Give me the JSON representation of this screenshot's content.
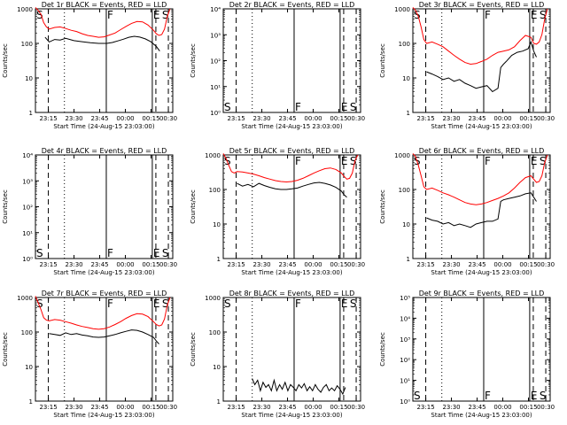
{
  "chart_data": [
    {
      "type": "line",
      "title": "Det 1r BLACK = Events, RED = LLD",
      "ylabel": "Counts/sec",
      "xlabel": "Start Time (24-Aug-15 23:03:00)",
      "yscale": "log",
      "ylim": [
        1,
        1000
      ],
      "yticks": [
        "1",
        "10",
        "100",
        "1000"
      ],
      "xticks": [
        "23:15",
        "23:30",
        "23:45",
        "00:00",
        "00:15",
        "00:30"
      ],
      "markers": [
        "S",
        "F",
        "E",
        "S"
      ],
      "series": [
        {
          "name": "BLACK",
          "color": "#000000",
          "x": [
            0.07,
            0.1,
            0.14,
            0.18,
            0.22,
            0.28,
            0.34,
            0.4,
            0.46,
            0.52,
            0.56,
            0.6,
            0.64,
            0.68,
            0.72,
            0.76,
            0.8,
            0.84,
            0.88,
            0.905
          ],
          "y": [
            150,
            110,
            130,
            125,
            140,
            120,
            112,
            104,
            100,
            100,
            106,
            118,
            132,
            150,
            160,
            152,
            135,
            112,
            82,
            60
          ]
        },
        {
          "name": "RED",
          "color": "#ff0000",
          "x": [
            0.0,
            0.02,
            0.04,
            0.06,
            0.08,
            0.1,
            0.14,
            0.18,
            0.22,
            0.26,
            0.3,
            0.34,
            0.38,
            0.42,
            0.46,
            0.5,
            0.54,
            0.58,
            0.62,
            0.66,
            0.7,
            0.74,
            0.78,
            0.82,
            0.86,
            0.88,
            0.9,
            0.92,
            0.94,
            0.96,
            0.98
          ],
          "y": [
            1100,
            900,
            700,
            400,
            300,
            260,
            290,
            300,
            270,
            240,
            220,
            190,
            170,
            160,
            150,
            155,
            175,
            200,
            250,
            310,
            380,
            430,
            420,
            340,
            240,
            190,
            170,
            180,
            260,
            600,
            1000
          ]
        }
      ]
    },
    {
      "type": "line",
      "title": "Det 2r BLACK = Events, RED = LLD",
      "ylabel": "Counts/sec",
      "xlabel": "Start Time (24-Aug-15 23:03:00)",
      "yscale": "log",
      "ylim": [
        1,
        10000
      ],
      "yticks": [
        "10⁰",
        "10¹",
        "10²",
        "10³",
        "10⁴"
      ],
      "xticks": [
        "23:15",
        "23:30",
        "23:45",
        "00:00",
        "00:15",
        "00:30"
      ],
      "markers": [
        "S",
        "F",
        "E",
        "S"
      ],
      "series": []
    },
    {
      "type": "line",
      "title": "Det 3r BLACK = Events, RED = LLD",
      "ylabel": "Counts/sec",
      "xlabel": "Start Time (24-Aug-15 23:03:00)",
      "yscale": "log",
      "ylim": [
        1,
        1000
      ],
      "yticks": [
        "1",
        "10",
        "100",
        "1000"
      ],
      "xticks": [
        "23:15",
        "23:30",
        "23:45",
        "00:00",
        "00:15",
        "00:30"
      ],
      "markers": [
        "S",
        "F",
        "E",
        "S"
      ],
      "series": [
        {
          "name": "BLACK",
          "color": "#000000",
          "x": [
            0.1,
            0.14,
            0.18,
            0.22,
            0.26,
            0.3,
            0.34,
            0.38,
            0.42,
            0.46,
            0.5,
            0.54,
            0.58,
            0.62,
            0.64,
            0.66,
            0.68,
            0.72,
            0.76,
            0.8,
            0.84,
            0.86,
            0.88,
            0.9
          ],
          "y": [
            15,
            13,
            11,
            9,
            10,
            8,
            9,
            7,
            6,
            5,
            5.5,
            6,
            4,
            5,
            20,
            25,
            30,
            45,
            55,
            60,
            70,
            110,
            60,
            40
          ]
        },
        {
          "name": "RED",
          "color": "#ff0000",
          "x": [
            0.0,
            0.02,
            0.04,
            0.06,
            0.08,
            0.1,
            0.14,
            0.18,
            0.22,
            0.26,
            0.3,
            0.34,
            0.38,
            0.42,
            0.46,
            0.5,
            0.54,
            0.58,
            0.62,
            0.66,
            0.7,
            0.74,
            0.78,
            0.82,
            0.86,
            0.88,
            0.9,
            0.92,
            0.94,
            0.96,
            0.98
          ],
          "y": [
            1100,
            900,
            600,
            300,
            130,
            100,
            110,
            95,
            80,
            60,
            45,
            35,
            28,
            25,
            26,
            30,
            35,
            45,
            55,
            60,
            65,
            80,
            120,
            170,
            150,
            100,
            95,
            110,
            180,
            500,
            1000
          ]
        }
      ]
    },
    {
      "type": "line",
      "title": "Det 4r BLACK = Events, RED = LLD",
      "ylabel": "Counts/sec",
      "xlabel": "Start Time (24-Aug-15 23:03:00)",
      "yscale": "log",
      "ylim": [
        1,
        10000
      ],
      "yticks": [
        "10⁰",
        "10¹",
        "10²",
        "10³",
        "10⁴"
      ],
      "xticks": [
        "23:15",
        "23:30",
        "23:45",
        "00:00",
        "00:15",
        "00:30"
      ],
      "markers": [
        "S",
        "F",
        "E",
        "S"
      ],
      "series": []
    },
    {
      "type": "line",
      "title": "Det 5r BLACK = Events, RED = LLD",
      "ylabel": "Counts/sec",
      "xlabel": "Start Time (24-Aug-15 23:03:00)",
      "yscale": "log",
      "ylim": [
        1,
        1000
      ],
      "yticks": [
        "1",
        "10",
        "100",
        "1000"
      ],
      "xticks": [
        "23:15",
        "23:30",
        "23:45",
        "00:00",
        "00:15",
        "00:30"
      ],
      "markers": [
        "S",
        "F",
        "E",
        "S"
      ],
      "series": [
        {
          "name": "BLACK",
          "color": "#000000",
          "x": [
            0.1,
            0.14,
            0.18,
            0.22,
            0.26,
            0.3,
            0.34,
            0.38,
            0.42,
            0.46,
            0.5,
            0.54,
            0.58,
            0.62,
            0.66,
            0.7,
            0.74,
            0.78,
            0.82,
            0.86,
            0.88,
            0.9
          ],
          "y": [
            150,
            125,
            140,
            120,
            150,
            130,
            115,
            105,
            100,
            100,
            104,
            110,
            125,
            140,
            155,
            160,
            150,
            135,
            115,
            90,
            70,
            60
          ]
        },
        {
          "name": "RED",
          "color": "#ff0000",
          "x": [
            0.0,
            0.02,
            0.04,
            0.06,
            0.08,
            0.1,
            0.14,
            0.18,
            0.22,
            0.26,
            0.3,
            0.34,
            0.38,
            0.42,
            0.46,
            0.5,
            0.54,
            0.58,
            0.62,
            0.66,
            0.7,
            0.74,
            0.78,
            0.82,
            0.86,
            0.88,
            0.9,
            0.92,
            0.94,
            0.96,
            0.98
          ],
          "y": [
            1100,
            800,
            500,
            330,
            300,
            330,
            320,
            300,
            280,
            250,
            220,
            200,
            180,
            170,
            165,
            170,
            185,
            210,
            250,
            300,
            350,
            400,
            420,
            380,
            300,
            240,
            200,
            210,
            300,
            700,
            1000
          ]
        }
      ]
    },
    {
      "type": "line",
      "title": "Det 6r BLACK = Events, RED = LLD",
      "ylabel": "Counts/sec",
      "xlabel": "Start Time (24-Aug-15 23:03:00)",
      "yscale": "log",
      "ylim": [
        1,
        1000
      ],
      "yticks": [
        "1",
        "10",
        "100",
        "1000"
      ],
      "xticks": [
        "23:15",
        "23:30",
        "23:45",
        "00:00",
        "00:15",
        "00:30"
      ],
      "markers": [
        "S",
        "F",
        "E",
        "S"
      ],
      "series": [
        {
          "name": "BLACK",
          "color": "#000000",
          "x": [
            0.1,
            0.14,
            0.18,
            0.22,
            0.26,
            0.3,
            0.34,
            0.38,
            0.42,
            0.46,
            0.5,
            0.54,
            0.58,
            0.62,
            0.64,
            0.66,
            0.7,
            0.74,
            0.78,
            0.82,
            0.86,
            0.88,
            0.9
          ],
          "y": [
            15,
            13,
            12,
            10,
            11,
            9,
            10,
            9,
            8,
            10,
            11,
            12,
            12,
            14,
            45,
            50,
            55,
            60,
            65,
            75,
            80,
            60,
            45
          ]
        },
        {
          "name": "RED",
          "color": "#ff0000",
          "x": [
            0.0,
            0.02,
            0.04,
            0.06,
            0.08,
            0.1,
            0.14,
            0.18,
            0.22,
            0.26,
            0.3,
            0.34,
            0.38,
            0.42,
            0.46,
            0.5,
            0.54,
            0.58,
            0.62,
            0.66,
            0.7,
            0.74,
            0.78,
            0.82,
            0.86,
            0.88,
            0.9,
            0.92,
            0.94,
            0.96,
            0.98
          ],
          "y": [
            1100,
            900,
            500,
            250,
            120,
            100,
            110,
            95,
            80,
            70,
            60,
            50,
            42,
            38,
            36,
            38,
            42,
            48,
            55,
            65,
            80,
            110,
            160,
            220,
            250,
            200,
            160,
            170,
            250,
            600,
            1000
          ]
        }
      ]
    },
    {
      "type": "line",
      "title": "Det 7r BLACK = Events, RED = LLD",
      "ylabel": "Counts/sec",
      "xlabel": "Start Time (24-Aug-15 23:03:00)",
      "yscale": "log",
      "ylim": [
        1,
        1000
      ],
      "yticks": [
        "1",
        "10",
        "100",
        "1000"
      ],
      "xticks": [
        "23:15",
        "23:30",
        "23:45",
        "00:00",
        "00:15",
        "00:30"
      ],
      "markers": [
        "S",
        "F",
        "E",
        "S"
      ],
      "series": [
        {
          "name": "BLACK",
          "color": "#000000",
          "x": [
            0.1,
            0.14,
            0.18,
            0.22,
            0.26,
            0.3,
            0.34,
            0.38,
            0.42,
            0.46,
            0.5,
            0.54,
            0.58,
            0.62,
            0.66,
            0.7,
            0.74,
            0.78,
            0.82,
            0.86,
            0.88,
            0.9
          ],
          "y": [
            90,
            85,
            80,
            95,
            85,
            90,
            82,
            78,
            72,
            70,
            72,
            78,
            85,
            95,
            105,
            115,
            112,
            100,
            85,
            70,
            55,
            45
          ]
        },
        {
          "name": "RED",
          "color": "#ff0000",
          "x": [
            0.0,
            0.02,
            0.04,
            0.06,
            0.08,
            0.1,
            0.14,
            0.18,
            0.22,
            0.26,
            0.3,
            0.34,
            0.38,
            0.42,
            0.46,
            0.5,
            0.54,
            0.58,
            0.62,
            0.66,
            0.7,
            0.74,
            0.78,
            0.82,
            0.86,
            0.88,
            0.9,
            0.92,
            0.94,
            0.96,
            0.98
          ],
          "y": [
            1100,
            700,
            450,
            260,
            220,
            210,
            230,
            220,
            200,
            180,
            160,
            145,
            135,
            125,
            120,
            125,
            140,
            165,
            200,
            250,
            300,
            340,
            330,
            280,
            200,
            165,
            150,
            160,
            240,
            600,
            1000
          ]
        }
      ]
    },
    {
      "type": "line",
      "title": "Det 8r BLACK = Events, RED = LLD",
      "ylabel": "Counts/sec",
      "xlabel": "Start Time (24-Aug-15 23:03:00)",
      "yscale": "log",
      "ylim": [
        1,
        1000
      ],
      "yticks": [
        "1",
        "10",
        "100",
        "1000"
      ],
      "xticks": [
        "23:15",
        "23:30",
        "23:45",
        "00:00",
        "00:15",
        "00:30"
      ],
      "markers": [
        "S",
        "F",
        "E",
        "S"
      ],
      "series": [
        {
          "name": "BLACK",
          "color": "#000000",
          "x": [
            0.21,
            0.23,
            0.25,
            0.27,
            0.29,
            0.31,
            0.33,
            0.35,
            0.37,
            0.39,
            0.41,
            0.43,
            0.45,
            0.47,
            0.49,
            0.51,
            0.53,
            0.55,
            0.57,
            0.59,
            0.61,
            0.63,
            0.65,
            0.67,
            0.69,
            0.71,
            0.73,
            0.75,
            0.77,
            0.79,
            0.81,
            0.83,
            0.85,
            0.87,
            0.89
          ],
          "y": [
            4.5,
            3,
            4,
            2,
            3.5,
            2.5,
            3,
            2,
            4,
            2,
            3,
            2.2,
            3.5,
            2,
            3,
            2.5,
            2,
            3,
            2.4,
            3.2,
            2,
            2.6,
            2,
            3,
            2.2,
            1.8,
            2.5,
            3,
            2,
            2.4,
            2,
            2.8,
            2.2,
            1.6,
            2.5
          ]
        }
      ]
    },
    {
      "type": "line",
      "title": "Det 9r BLACK = Events, RED = LLD",
      "ylabel": "Counts/sec",
      "xlabel": "Start Time (24-Aug-15 23:03:00)",
      "yscale": "log",
      "ylim": [
        1,
        100000
      ],
      "yticks": [
        "10⁰",
        "10¹",
        "10²",
        "10³",
        "10⁴",
        "10⁵"
      ],
      "xticks": [
        "23:15",
        "23:30",
        "23:45",
        "00:00",
        "00:15",
        "00:30"
      ],
      "markers": [
        "S",
        "F",
        "E",
        "S"
      ],
      "series": []
    }
  ]
}
